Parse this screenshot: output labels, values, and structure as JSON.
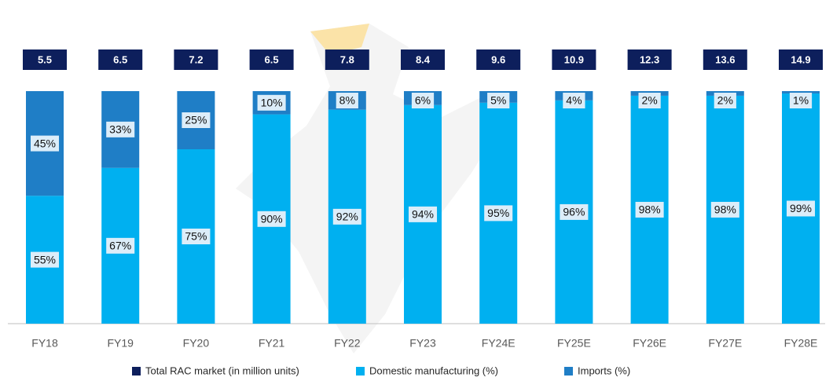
{
  "chart_data": {
    "type": "bar",
    "categories": [
      "FY18",
      "FY19",
      "FY20",
      "FY21",
      "FY22",
      "FY23",
      "FY24E",
      "FY25E",
      "FY26E",
      "FY27E",
      "FY28E"
    ],
    "ylim": [
      0,
      100
    ],
    "series": [
      {
        "name": "Total RAC market (in million units)",
        "color": "#0d1f5c",
        "values": [
          5.5,
          6.5,
          7.2,
          6.5,
          7.8,
          8.4,
          9.6,
          10.9,
          12.3,
          13.6,
          14.9
        ]
      },
      {
        "name": "Domestic manufacturing (%)",
        "color": "#00b0f0",
        "values": [
          55,
          67,
          75,
          90,
          92,
          94,
          95,
          96,
          98,
          98,
          99
        ],
        "value_labels": [
          "55%",
          "67%",
          "75%",
          "90%",
          "92%",
          "94%",
          "95%",
          "96%",
          "98%",
          "98%",
          "99%"
        ]
      },
      {
        "name": "Imports (%)",
        "color": "#1f7ec6",
        "values": [
          45,
          33,
          25,
          10,
          8,
          6,
          5,
          4,
          2,
          2,
          1
        ],
        "value_labels": [
          "45%",
          "33%",
          "25%",
          "10%",
          "8%",
          "6%",
          "5%",
          "4%",
          "2%",
          "2%",
          "1%"
        ]
      }
    ]
  }
}
